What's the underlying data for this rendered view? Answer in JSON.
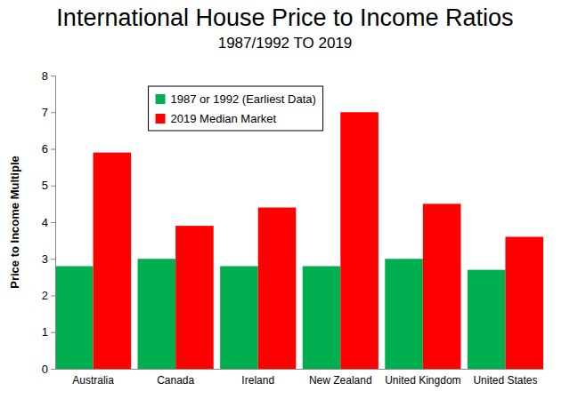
{
  "chart_data": {
    "type": "bar",
    "title": "International House Price to Income Ratios",
    "subtitle": "1987/1992 TO 2019",
    "y_label": "Price to Income Multiple",
    "categories": [
      "Australia",
      "Canada",
      "Ireland",
      "New Zealand",
      "United Kingdom",
      "United States"
    ],
    "series": [
      {
        "name": "1987 or 1992 (Earliest Data)",
        "color": "#00b050",
        "values": [
          2.8,
          3.0,
          2.8,
          2.8,
          3.0,
          2.7
        ]
      },
      {
        "name": "2019 Median Market",
        "color": "#ff0000",
        "values": [
          5.9,
          3.9,
          4.4,
          7.0,
          4.5,
          3.6
        ]
      }
    ],
    "ylim": [
      0,
      8
    ],
    "yticks": [
      0,
      1,
      2,
      3,
      4,
      5,
      6,
      7,
      8
    ],
    "grid": false,
    "legend": "upper left"
  }
}
